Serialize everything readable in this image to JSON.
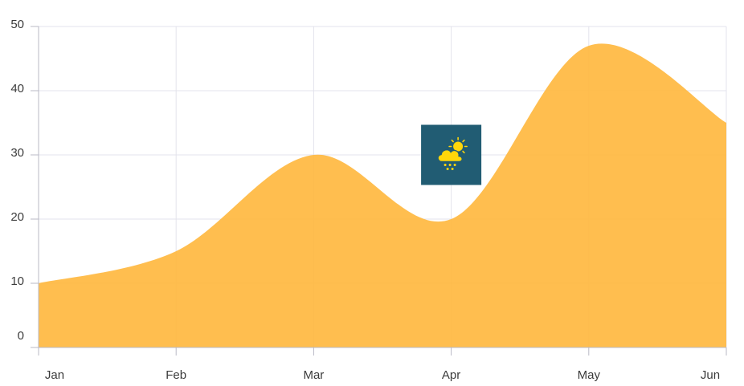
{
  "chart_data": {
    "type": "area",
    "title": "",
    "xlabel": "",
    "ylabel": "",
    "categories": [
      "Jan",
      "Feb",
      "Mar",
      "Apr",
      "May",
      "Jun"
    ],
    "x_tick_labels": [
      "Jan",
      "Feb",
      "Mar",
      "Apr",
      "May",
      "Jun"
    ],
    "y_tick_labels": [
      "0",
      "10",
      "20",
      "30",
      "40",
      "50"
    ],
    "ylim": [
      0,
      50
    ],
    "grid": true,
    "legend": "none",
    "area_color": "#ffb73c",
    "series": [
      {
        "values": [
          10,
          15,
          30,
          20,
          47,
          35
        ]
      }
    ],
    "annotation": {
      "category": "Apr",
      "y": 30,
      "icon": "cloud-sun-snow-icon",
      "background_color": "#215c73",
      "icon_color": "#ffd60a"
    }
  }
}
